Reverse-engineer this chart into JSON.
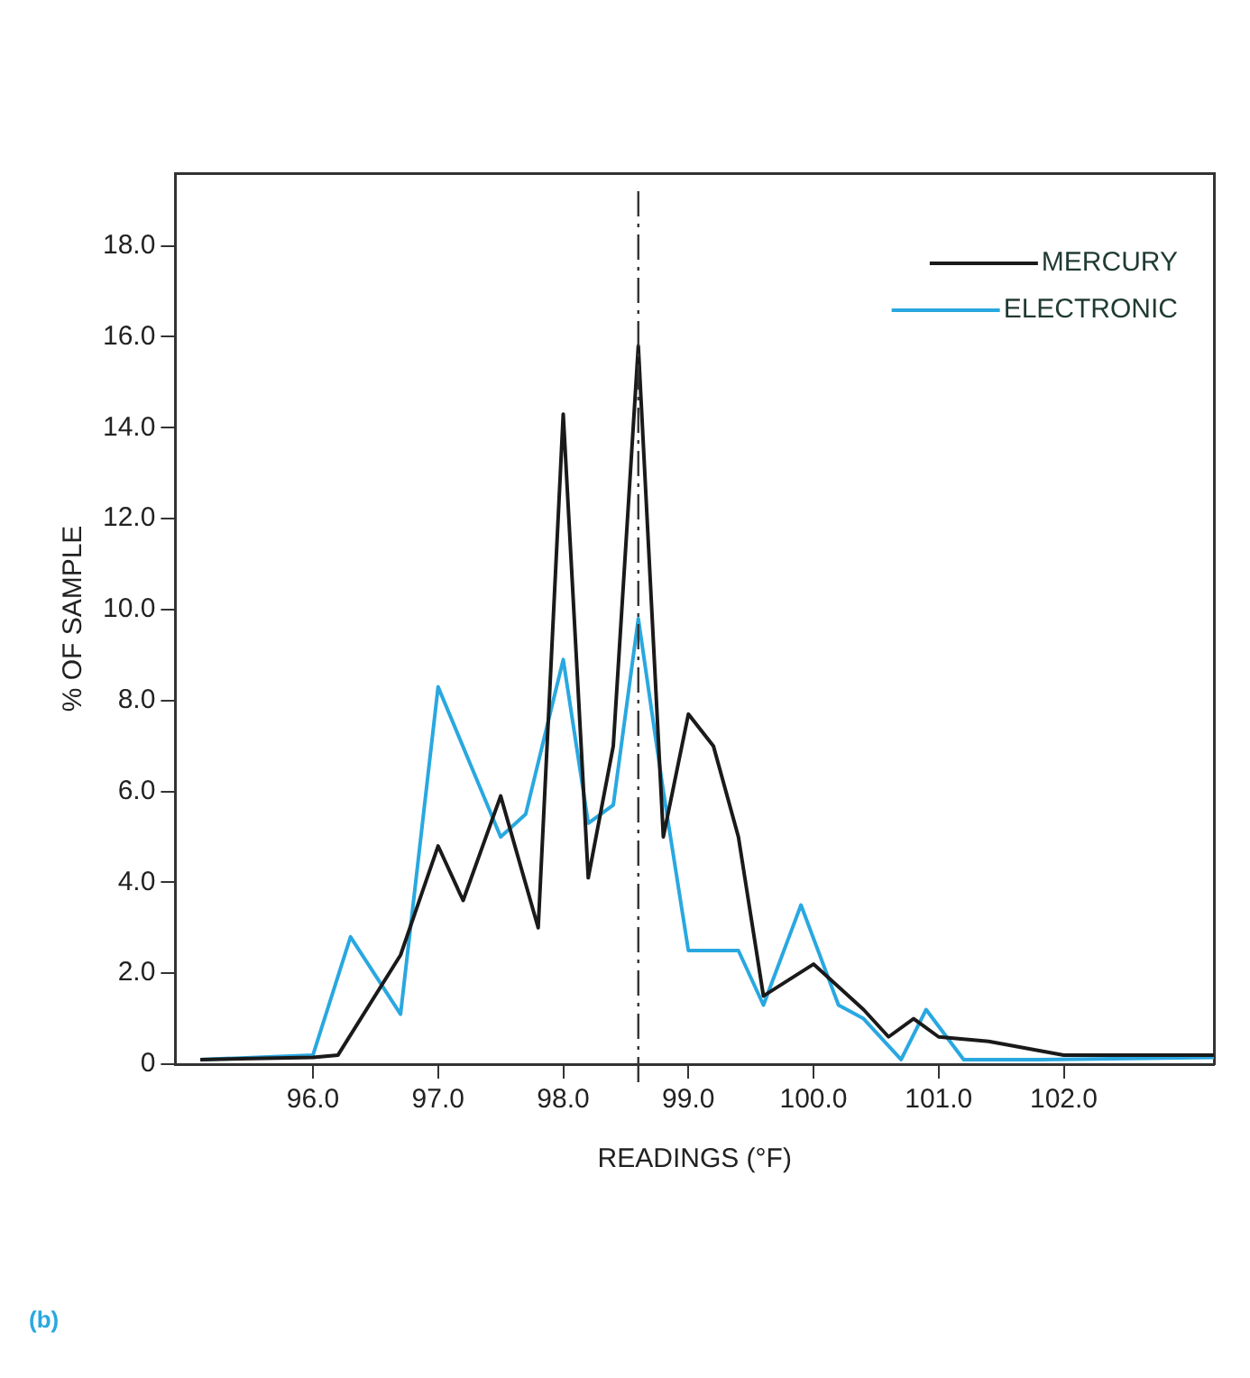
{
  "chart_data": {
    "type": "line",
    "xlabel": "READINGS (°F)",
    "ylabel": "% OF SAMPLE",
    "annotations": [
      "(b)"
    ],
    "xlim": [
      94.9,
      103.2
    ],
    "ylim": [
      0,
      19.6
    ],
    "xticks": [
      {
        "value": 96,
        "label": "96.0"
      },
      {
        "value": 97,
        "label": "97.0"
      },
      {
        "value": 98,
        "label": "98.0"
      },
      {
        "value": 99,
        "label": "99.0"
      },
      {
        "value": 100,
        "label": "100.0"
      },
      {
        "value": 101,
        "label": "101.0"
      },
      {
        "value": 102,
        "label": "102.0"
      }
    ],
    "yticks": [
      0,
      {
        "value": 2,
        "label": "2.0"
      },
      {
        "value": 4,
        "label": "4.0"
      },
      {
        "value": 6,
        "label": "6.0"
      },
      {
        "value": 8,
        "label": "8.0"
      },
      {
        "value": 10,
        "label": "10.0"
      },
      {
        "value": 12,
        "label": "12.0"
      },
      {
        "value": 14,
        "label": "14.0"
      },
      {
        "value": 16,
        "label": "16.0"
      },
      {
        "value": 18,
        "label": "18.0"
      }
    ],
    "grid": false,
    "legend": "top right",
    "marker": "none",
    "line_style": "solid",
    "ref_lines": [
      {
        "axis": "x",
        "value": 98.6,
        "line_style": "dashed",
        "color": "#333333"
      }
    ],
    "series": [
      {
        "name": "MERCURY",
        "color": "#1a1a1a",
        "x": [
          95.1,
          96.0,
          96.2,
          96.7,
          97.0,
          97.2,
          97.5,
          97.8,
          98.0,
          98.2,
          98.4,
          98.6,
          98.8,
          99.0,
          99.2,
          99.4,
          99.6,
          100.0,
          100.4,
          100.6,
          100.8,
          101.0,
          101.4,
          102.0,
          103.2
        ],
        "values": [
          0.1,
          0.15,
          0.2,
          2.4,
          4.8,
          3.6,
          5.9,
          3.0,
          14.3,
          4.1,
          7.0,
          15.8,
          5.0,
          7.7,
          7.0,
          5.0,
          1.5,
          2.2,
          1.2,
          0.6,
          1.0,
          0.6,
          0.5,
          0.2,
          0.2
        ]
      },
      {
        "name": "ELECTRONIC",
        "color": "#29a8e0",
        "x": [
          95.1,
          96.0,
          96.3,
          96.7,
          97.0,
          97.5,
          97.7,
          98.0,
          98.2,
          98.4,
          98.6,
          98.8,
          99.0,
          99.4,
          99.6,
          99.9,
          100.2,
          100.4,
          100.7,
          100.9,
          101.2,
          101.8,
          103.2
        ],
        "values": [
          0.1,
          0.2,
          2.8,
          1.1,
          8.3,
          5.0,
          5.5,
          8.9,
          5.3,
          5.7,
          9.8,
          6.0,
          2.5,
          2.5,
          1.3,
          3.5,
          1.3,
          1.0,
          0.1,
          1.2,
          0.1,
          0.1,
          0.15
        ]
      }
    ]
  }
}
